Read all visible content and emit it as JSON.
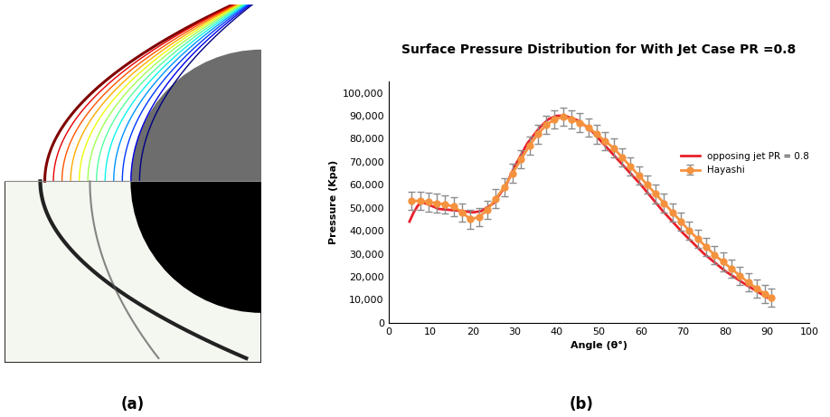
{
  "figure": {
    "panel_labels": [
      "(a)",
      "(b)"
    ]
  },
  "chart_data": {
    "type": "line",
    "title": "Surface Pressure Distribution for With Jet Case PR =0.8",
    "x_label": "Angle (θ°)",
    "y_label": "Pressure (Kpa)",
    "xlim": [
      0,
      100
    ],
    "xticks": [
      0,
      10,
      20,
      30,
      40,
      50,
      60,
      70,
      80,
      90,
      100
    ],
    "ylim": [
      0,
      105000
    ],
    "yticks": [
      0,
      {
        "value": 10000,
        "label": "10,000"
      },
      {
        "value": 20000,
        "label": "20,000"
      },
      {
        "value": 30000,
        "label": "30,000"
      },
      {
        "value": 40000,
        "label": "40,000"
      },
      {
        "value": 50000,
        "label": "50,000"
      },
      {
        "value": 60000,
        "label": "60,000"
      },
      {
        "value": 70000,
        "label": "70,000"
      },
      {
        "value": 80000,
        "label": "80,000"
      },
      {
        "value": 90000,
        "label": "90,000"
      },
      {
        "value": 100000,
        "label": "100,000"
      }
    ],
    "grid": false,
    "legend": "center right",
    "series": [
      {
        "name": "opposing jet PR = 0.8",
        "color": "#e8202a",
        "marker": "none",
        "line_style": "solid",
        "x": [
          5,
          6,
          7,
          8,
          10,
          12,
          15,
          18,
          20,
          22,
          25,
          28,
          30,
          33,
          36,
          38,
          40,
          42,
          45,
          48,
          50,
          55,
          60,
          65,
          70,
          75,
          80,
          85,
          90
        ],
        "values": [
          44000,
          48000,
          51000,
          52500,
          51000,
          49500,
          49000,
          48500,
          48000,
          48500,
          52000,
          60000,
          68000,
          78000,
          85000,
          88500,
          90000,
          90000,
          88000,
          84000,
          80000,
          70000,
          60000,
          49000,
          39000,
          30000,
          22500,
          16500,
          11000
        ]
      },
      {
        "name": "Hayashi",
        "color": "#f5923e",
        "marker": "circle",
        "line_style": "solid",
        "x": [
          5.5,
          7.5,
          9.5,
          11.5,
          13.5,
          15.5,
          17.5,
          19.5,
          21.5,
          23.5,
          25.5,
          27.5,
          29.5,
          31.5,
          33.5,
          35.5,
          37.5,
          39.5,
          41.5,
          43.5,
          45.5,
          47.5,
          49.5,
          51.5,
          53.5,
          55.5,
          57.5,
          59.5,
          61.5,
          63.5,
          65.5,
          67.5,
          69.5,
          71.5,
          73.5,
          75.5,
          77.5,
          79.5,
          81.5,
          83.5,
          85.5,
          87.5,
          89.5,
          91
        ],
        "values": [
          53000,
          53000,
          52500,
          52000,
          51500,
          50500,
          48000,
          45000,
          46000,
          49000,
          54000,
          59000,
          65000,
          71000,
          77000,
          82000,
          86000,
          88500,
          89500,
          88500,
          87000,
          85000,
          82000,
          79000,
          76000,
          72000,
          68000,
          64000,
          60000,
          56000,
          52000,
          48000,
          44000,
          40000,
          36500,
          33000,
          29500,
          26500,
          23500,
          20500,
          17500,
          15000,
          12500,
          11000
        ],
        "errors": [
          4000,
          4000,
          4000,
          4000,
          4000,
          4000,
          4000,
          4000,
          4000,
          4000,
          4000,
          4000,
          4000,
          4000,
          4000,
          4000,
          4000,
          4000,
          4000,
          4000,
          4000,
          4000,
          4000,
          4000,
          4000,
          4000,
          4000,
          4000,
          4000,
          4000,
          4000,
          4000,
          4000,
          4000,
          4000,
          4000,
          4000,
          4000,
          4000,
          4000,
          4000,
          4000,
          4000,
          4000
        ]
      }
    ]
  }
}
